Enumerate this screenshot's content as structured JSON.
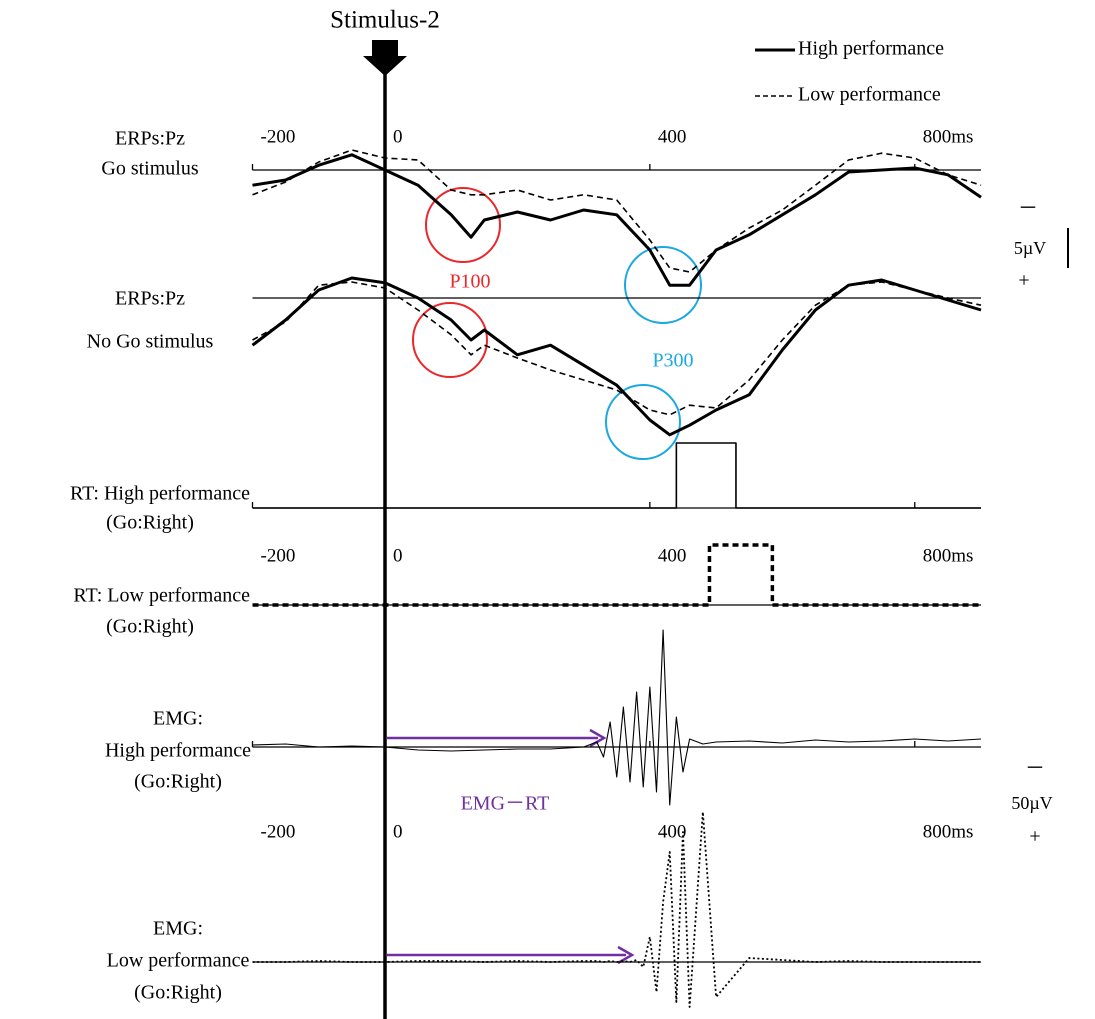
{
  "chart_data": [
    {
      "type": "line",
      "label": [
        "ERPs:Pz",
        "Go stimulus"
      ],
      "xlim": [
        -200,
        900
      ],
      "ylim": [
        -5,
        15
      ],
      "invert_y": true,
      "xticks": [
        -200,
        0,
        400,
        {
          "value": 800,
          "label": "800ms"
        }
      ],
      "x": [
        -200,
        -150,
        -100,
        -50,
        0,
        50,
        100,
        130,
        150,
        200,
        250,
        300,
        350,
        400,
        430,
        460,
        500,
        550,
        600,
        650,
        700,
        750,
        800,
        850,
        900
      ],
      "series": [
        {
          "name": "High performance",
          "color": "#000000",
          "dash": "solid",
          "width": 3,
          "values": [
            1.9,
            1.25,
            -0.6,
            -1.9,
            0,
            1.9,
            5.6,
            8.4,
            6.25,
            5.25,
            6.25,
            5,
            5.6,
            10,
            14.4,
            14.4,
            10,
            8.1,
            5.6,
            3.1,
            0.25,
            0,
            -0.25,
            0.6,
            3.4
          ]
        },
        {
          "name": "Low performance",
          "color": "#000000",
          "dash": "dashed",
          "width": 1.6,
          "values": [
            3.1,
            1.5,
            -1,
            -2.5,
            -1.5,
            -1.25,
            2.5,
            3.1,
            3.1,
            2.5,
            3.75,
            3.1,
            3.75,
            8.75,
            12.25,
            12.75,
            10,
            7.25,
            5,
            1.9,
            -1.25,
            -2.1,
            -1.5,
            0.6,
            1.9
          ]
        }
      ]
    },
    {
      "type": "line",
      "label": [
        "ERPs:Pz",
        "No Go stimulus"
      ],
      "xlim": [
        -200,
        900
      ],
      "ylim": [
        -5,
        18
      ],
      "invert_y": true,
      "x": [
        -200,
        -150,
        -100,
        -50,
        0,
        50,
        100,
        130,
        150,
        200,
        250,
        300,
        350,
        400,
        430,
        460,
        500,
        550,
        600,
        650,
        700,
        750,
        800,
        850,
        900
      ],
      "series": [
        {
          "color": "#000000",
          "dash": "solid",
          "width": 3,
          "values": [
            5.9,
            2.75,
            -1,
            -2.5,
            -1.9,
            0,
            2.75,
            5.25,
            4,
            7.1,
            5.9,
            8.4,
            10.9,
            15.25,
            17.1,
            15.9,
            14,
            12.1,
            6.5,
            1.5,
            -1.6,
            -2.25,
            -1,
            0.25,
            1.5
          ]
        },
        {
          "color": "#000000",
          "dash": "dashed",
          "width": 1.6,
          "values": [
            5.25,
            3,
            -1.6,
            -2,
            -1.25,
            1.5,
            4.6,
            7.1,
            5.9,
            7.5,
            9,
            10.25,
            11.5,
            14,
            14.6,
            13.4,
            13.75,
            10.25,
            5.25,
            0.9,
            -1.6,
            -2,
            -1,
            0,
            0.9
          ]
        }
      ]
    },
    {
      "type": "line",
      "label": [
        "RT: High performance",
        "(Go:Right)"
      ],
      "xlim": [
        -200,
        900
      ],
      "ylim": [
        0,
        1
      ],
      "invert_y": false,
      "xticks": [
        -200,
        0,
        400,
        {
          "value": 800,
          "label": "800ms"
        }
      ],
      "x": [
        -200,
        440,
        440,
        530,
        530,
        900
      ],
      "series": [
        {
          "color": "#000000",
          "dash": "solid",
          "width": 1.6,
          "values": [
            0,
            0,
            1,
            1,
            0,
            0
          ]
        }
      ]
    },
    {
      "type": "line",
      "label": [
        "RT: Low performance",
        "(Go:Right)"
      ],
      "xlim": [
        -200,
        900
      ],
      "ylim": [
        0,
        1
      ],
      "invert_y": false,
      "x": [
        -200,
        490,
        490,
        585,
        585,
        900
      ],
      "series": [
        {
          "color": "#000000",
          "dash": "dashed",
          "width": 3.5,
          "values": [
            0,
            0,
            1,
            1,
            0,
            0
          ]
        }
      ]
    },
    {
      "type": "line",
      "label": [
        "EMG:",
        "High performance",
        "(Go:Right)"
      ],
      "xlim": [
        -200,
        900
      ],
      "ylim": [
        -120,
        60
      ],
      "invert_y": true,
      "xticks": [
        -200,
        0,
        400,
        {
          "value": 800,
          "label": "800ms"
        }
      ],
      "x": [
        -200,
        -150,
        -100,
        -50,
        0,
        50,
        100,
        150,
        200,
        250,
        300,
        320,
        330,
        340,
        350,
        360,
        370,
        380,
        390,
        400,
        410,
        420,
        430,
        440,
        450,
        460,
        480,
        500,
        550,
        600,
        650,
        700,
        750,
        800,
        850,
        900
      ],
      "series": [
        {
          "color": "#000000",
          "dash": "solid",
          "width": 1.1,
          "values": [
            -2,
            -3,
            0,
            -1,
            0,
            3,
            4,
            3,
            2,
            2,
            0,
            -5,
            10,
            -25,
            30,
            -40,
            35,
            -55,
            40,
            -60,
            45,
            -117,
            58,
            -30,
            25,
            -8,
            -3,
            -5,
            -6,
            -4,
            -7,
            -5,
            -6,
            -8,
            -6,
            -8
          ]
        }
      ]
    },
    {
      "type": "line",
      "label": [
        "EMG:",
        "Low performance",
        "(Go:Right)"
      ],
      "xlim": [
        -200,
        900
      ],
      "ylim": [
        -155,
        55
      ],
      "invert_y": true,
      "x": [
        -200,
        -150,
        -100,
        -50,
        0,
        50,
        100,
        150,
        200,
        250,
        300,
        320,
        330,
        340,
        350,
        360,
        370,
        380,
        390,
        400,
        410,
        420,
        430,
        440,
        450,
        460,
        480,
        500,
        550,
        600,
        650,
        700,
        750,
        800,
        850,
        900
      ],
      "series": [
        {
          "color": "#000000",
          "dash": "dotted",
          "width": 1.8,
          "values": [
            0,
            0,
            -1,
            0,
            0,
            -1,
            -1,
            0,
            -1,
            0,
            -1,
            -1,
            0,
            -1,
            0,
            -1,
            0,
            -2,
            5,
            -25,
            30,
            -60,
            -110,
            40,
            -130,
            45,
            -150,
            35,
            -4,
            -2,
            0,
            -1,
            0,
            0,
            0,
            0
          ]
        }
      ]
    }
  ],
  "annotations": {
    "stimulus": "Stimulus-2",
    "p100": "P100",
    "p300": "P300",
    "emg_rt": "EMG－RT",
    "scale_erp": {
      "minus": "－",
      "value": "5µV",
      "plus": "+"
    },
    "scale_emg": {
      "minus": "－",
      "value": "50µV",
      "plus": "+"
    }
  }
}
